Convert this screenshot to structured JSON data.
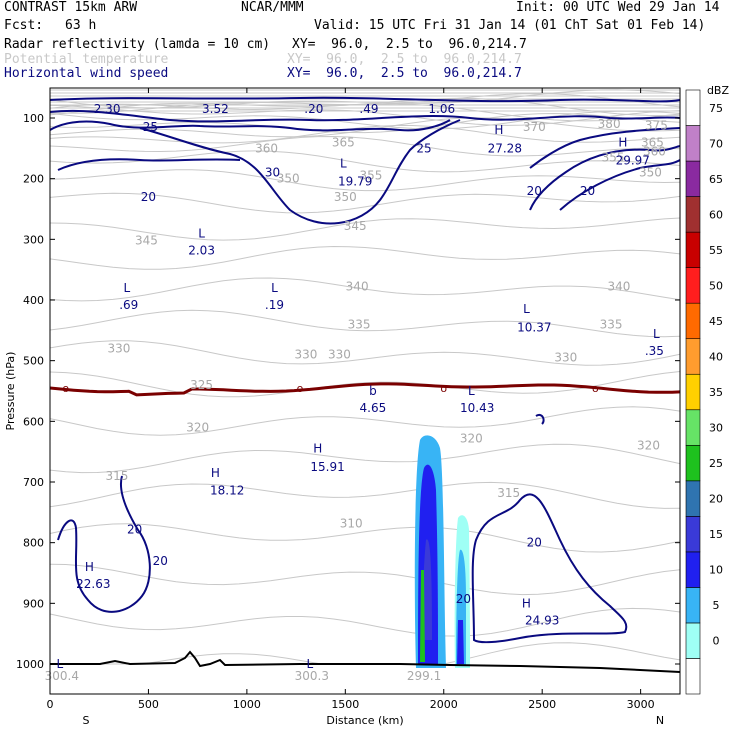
{
  "header": {
    "model": "CONTRAST 15km ARW",
    "org": "NCAR/MMM",
    "init": "Init: 00 UTC Wed 29 Jan 14",
    "fcst_label": "Fcst:",
    "fcst_value": "63 h",
    "valid": "Valid: 15 UTC Fri 31 Jan 14 (01 ChT Sat 01 Feb 14)",
    "fields": [
      {
        "name": "Radar reflectivity (lamda = 10 cm)",
        "xy": "XY=  96.0,  2.5 to  96.0,214.7",
        "color": "#000000"
      },
      {
        "name": "Potential temperature",
        "xy": "XY=  96.0,  2.5 to  96.0,214.7",
        "color": "#c8c8c8"
      },
      {
        "name": "Horizontal wind speed",
        "xy": "XY=  96.0,  2.5 to  96.0,214.7",
        "color": "#0a0a80"
      }
    ]
  },
  "chart_data": {
    "type": "cross-section",
    "xlabel": "Distance (km)",
    "ylabel": "Pressure (hPa)",
    "xlim": [
      0,
      3200
    ],
    "ylim": [
      1050,
      70
    ],
    "x_ticks": [
      0,
      500,
      1000,
      1500,
      2000,
      2500,
      3000
    ],
    "y_ticks": [
      100,
      200,
      300,
      400,
      500,
      600,
      700,
      800,
      900,
      1000
    ],
    "left_end_label": "S",
    "right_end_label": "N",
    "colorbar": {
      "unit": "dBZ",
      "levels": [
        0,
        5,
        10,
        15,
        20,
        25,
        30,
        35,
        40,
        45,
        50,
        55,
        60,
        65,
        70,
        75
      ],
      "colors": [
        "#ffffff",
        "#9ffff5",
        "#38b4f5",
        "#2020f0",
        "#3a3ad8",
        "#2f74b0",
        "#1ec11e",
        "#66e366",
        "#ffd000",
        "#ff9c2e",
        "#ff6a00",
        "#ff1e1e",
        "#c80000",
        "#a03030",
        "#8a2aa0",
        "#c080c8",
        "#ffffff"
      ]
    },
    "theta_labels": [
      {
        "text": "370",
        "x": 2460,
        "p": 115
      },
      {
        "text": "380",
        "x": 2840,
        "p": 110
      },
      {
        "text": "375",
        "x": 3080,
        "p": 112
      },
      {
        "text": "365",
        "x": 3060,
        "p": 140
      },
      {
        "text": "360",
        "x": 3070,
        "p": 155
      },
      {
        "text": "355",
        "x": 2860,
        "p": 165
      },
      {
        "text": "350",
        "x": 3050,
        "p": 190
      },
      {
        "text": "350",
        "x": 1210,
        "p": 200
      },
      {
        "text": "350",
        "x": 1500,
        "p": 230
      },
      {
        "text": "355",
        "x": 1630,
        "p": 195
      },
      {
        "text": "360",
        "x": 1100,
        "p": 150
      },
      {
        "text": "365",
        "x": 1490,
        "p": 140
      },
      {
        "text": "345",
        "x": 1550,
        "p": 278
      },
      {
        "text": "345",
        "x": 490,
        "p": 302
      },
      {
        "text": "340",
        "x": 1560,
        "p": 378
      },
      {
        "text": "340",
        "x": 2890,
        "p": 378
      },
      {
        "text": "335",
        "x": 1570,
        "p": 440
      },
      {
        "text": "335",
        "x": 2850,
        "p": 440
      },
      {
        "text": "330",
        "x": 350,
        "p": 480
      },
      {
        "text": "330",
        "x": 1300,
        "p": 490
      },
      {
        "text": "330",
        "x": 1470,
        "p": 490
      },
      {
        "text": "330",
        "x": 2620,
        "p": 495
      },
      {
        "text": "325",
        "x": 770,
        "p": 540
      },
      {
        "text": "320",
        "x": 750,
        "p": 610
      },
      {
        "text": "320",
        "x": 2140,
        "p": 628
      },
      {
        "text": "320",
        "x": 3040,
        "p": 640
      },
      {
        "text": "315",
        "x": 340,
        "p": 690
      },
      {
        "text": "315",
        "x": 2330,
        "p": 718
      },
      {
        "text": "310",
        "x": 1530,
        "p": 768
      },
      {
        "text": "300.4",
        "x": 60,
        "p": 1020
      },
      {
        "text": "300.3",
        "x": 1330,
        "p": 1020
      },
      {
        "text": "299.1",
        "x": 1900,
        "p": 1020
      }
    ],
    "wind_labels": [
      {
        "text": "2.30",
        "x": 290,
        "p": 85
      },
      {
        "text": "3.52",
        "x": 840,
        "p": 85
      },
      {
        "text": ".20",
        "x": 1340,
        "p": 85
      },
      {
        "text": ".49",
        "x": 1620,
        "p": 85
      },
      {
        "text": "1.06",
        "x": 1990,
        "p": 85
      },
      {
        "text": "25",
        "x": 510,
        "p": 115
      },
      {
        "text": "25",
        "x": 1900,
        "p": 150
      },
      {
        "text": "30",
        "x": 1130,
        "p": 190
      },
      {
        "text": "20",
        "x": 500,
        "p": 230
      },
      {
        "text": "L",
        "x": 1490,
        "p": 175
      },
      {
        "text": "19.79",
        "x": 1550,
        "p": 205
      },
      {
        "text": "H",
        "x": 2280,
        "p": 120
      },
      {
        "text": "27.28",
        "x": 2310,
        "p": 150
      },
      {
        "text": "H",
        "x": 2910,
        "p": 140
      },
      {
        "text": "29.97",
        "x": 2960,
        "p": 170
      },
      {
        "text": "20",
        "x": 2460,
        "p": 220
      },
      {
        "text": "20",
        "x": 2730,
        "p": 220
      },
      {
        "text": "L",
        "x": 770,
        "p": 290
      },
      {
        "text": "2.03",
        "x": 770,
        "p": 318
      },
      {
        "text": "L",
        "x": 390,
        "p": 380
      },
      {
        "text": ".69",
        "x": 400,
        "p": 408
      },
      {
        "text": "L",
        "x": 1140,
        "p": 380
      },
      {
        "text": ".19",
        "x": 1140,
        "p": 408
      },
      {
        "text": "L",
        "x": 2420,
        "p": 415
      },
      {
        "text": "10.37",
        "x": 2460,
        "p": 445
      },
      {
        "text": "L",
        "x": 3080,
        "p": 456
      },
      {
        "text": ".35",
        "x": 3070,
        "p": 484
      },
      {
        "text": "b",
        "x": 1640,
        "p": 550
      },
      {
        "text": "4.65",
        "x": 1640,
        "p": 578
      },
      {
        "text": "L",
        "x": 2140,
        "p": 550
      },
      {
        "text": "10.43",
        "x": 2170,
        "p": 578
      },
      {
        "text": "H",
        "x": 1360,
        "p": 645
      },
      {
        "text": "15.91",
        "x": 1410,
        "p": 675
      },
      {
        "text": "H",
        "x": 840,
        "p": 685
      },
      {
        "text": "18.12",
        "x": 900,
        "p": 714
      },
      {
        "text": "20",
        "x": 430,
        "p": 778
      },
      {
        "text": "20",
        "x": 560,
        "p": 830
      },
      {
        "text": "H",
        "x": 200,
        "p": 840
      },
      {
        "text": "22.63",
        "x": 220,
        "p": 868
      },
      {
        "text": "20",
        "x": 2460,
        "p": 800
      },
      {
        "text": "20",
        "x": 2100,
        "p": 893
      },
      {
        "text": "H",
        "x": 2420,
        "p": 900
      },
      {
        "text": "24.93",
        "x": 2500,
        "p": 928
      },
      {
        "text": "L",
        "x": 50,
        "p": 1000
      },
      {
        "text": "L",
        "x": 1320,
        "p": 1000
      }
    ],
    "zero_line_labels": [
      "o",
      "o",
      "o",
      "o"
    ]
  },
  "colors": {
    "wind": "#0a0a80",
    "theta": "#c8c8c8",
    "freezing_line": "#7a0000",
    "ground": "#000000"
  }
}
